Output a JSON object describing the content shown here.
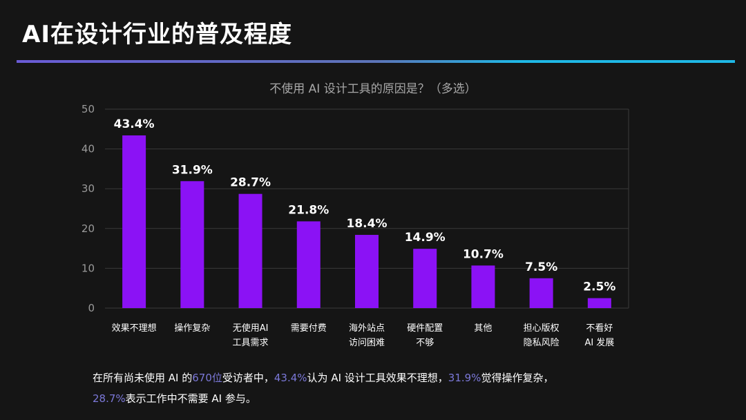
{
  "header": {
    "title": "AI在设计行业的普及程度"
  },
  "colors": {
    "bar": "#8b12f5",
    "grid": "#3a3a3a",
    "axis_text": "#9a9a9a",
    "highlight": "#7b78d8"
  },
  "chart_data": {
    "type": "bar",
    "title": "不使用 AI 设计工具的原因是？（多选）",
    "xlabel": "",
    "ylabel": "",
    "ylim": [
      0,
      50
    ],
    "yticks": [
      0,
      10,
      20,
      30,
      40,
      50
    ],
    "grid": true,
    "categories": [
      [
        "效果不理想"
      ],
      [
        "操作复杂"
      ],
      [
        "无使用AI",
        "工具需求"
      ],
      [
        "需要付费"
      ],
      [
        "海外站点",
        "访问困难"
      ],
      [
        "硬件配置",
        "不够"
      ],
      [
        "其他"
      ],
      [
        "担心版权",
        "隐私风险"
      ],
      [
        "不看好",
        "AI 发展"
      ]
    ],
    "values": [
      43.4,
      31.9,
      28.7,
      21.8,
      18.4,
      14.9,
      10.7,
      7.5,
      2.5
    ],
    "data_labels": [
      "43.4%",
      "31.9%",
      "28.7%",
      "21.8%",
      "18.4%",
      "14.9%",
      "10.7%",
      "7.5%",
      "2.5%"
    ]
  },
  "caption": {
    "line1_a": "在所有尚未使用 AI 的",
    "line1_b": "670位",
    "line1_c": "受访者中，",
    "line1_d": "43.4%",
    "line1_e": "认为 AI 设计工具效果不理想，",
    "line1_f": "31.9%",
    "line1_g": "觉得操作复杂，",
    "line2_a": "28.7%",
    "line2_b": "表示工作中不需要 AI 参与。"
  }
}
